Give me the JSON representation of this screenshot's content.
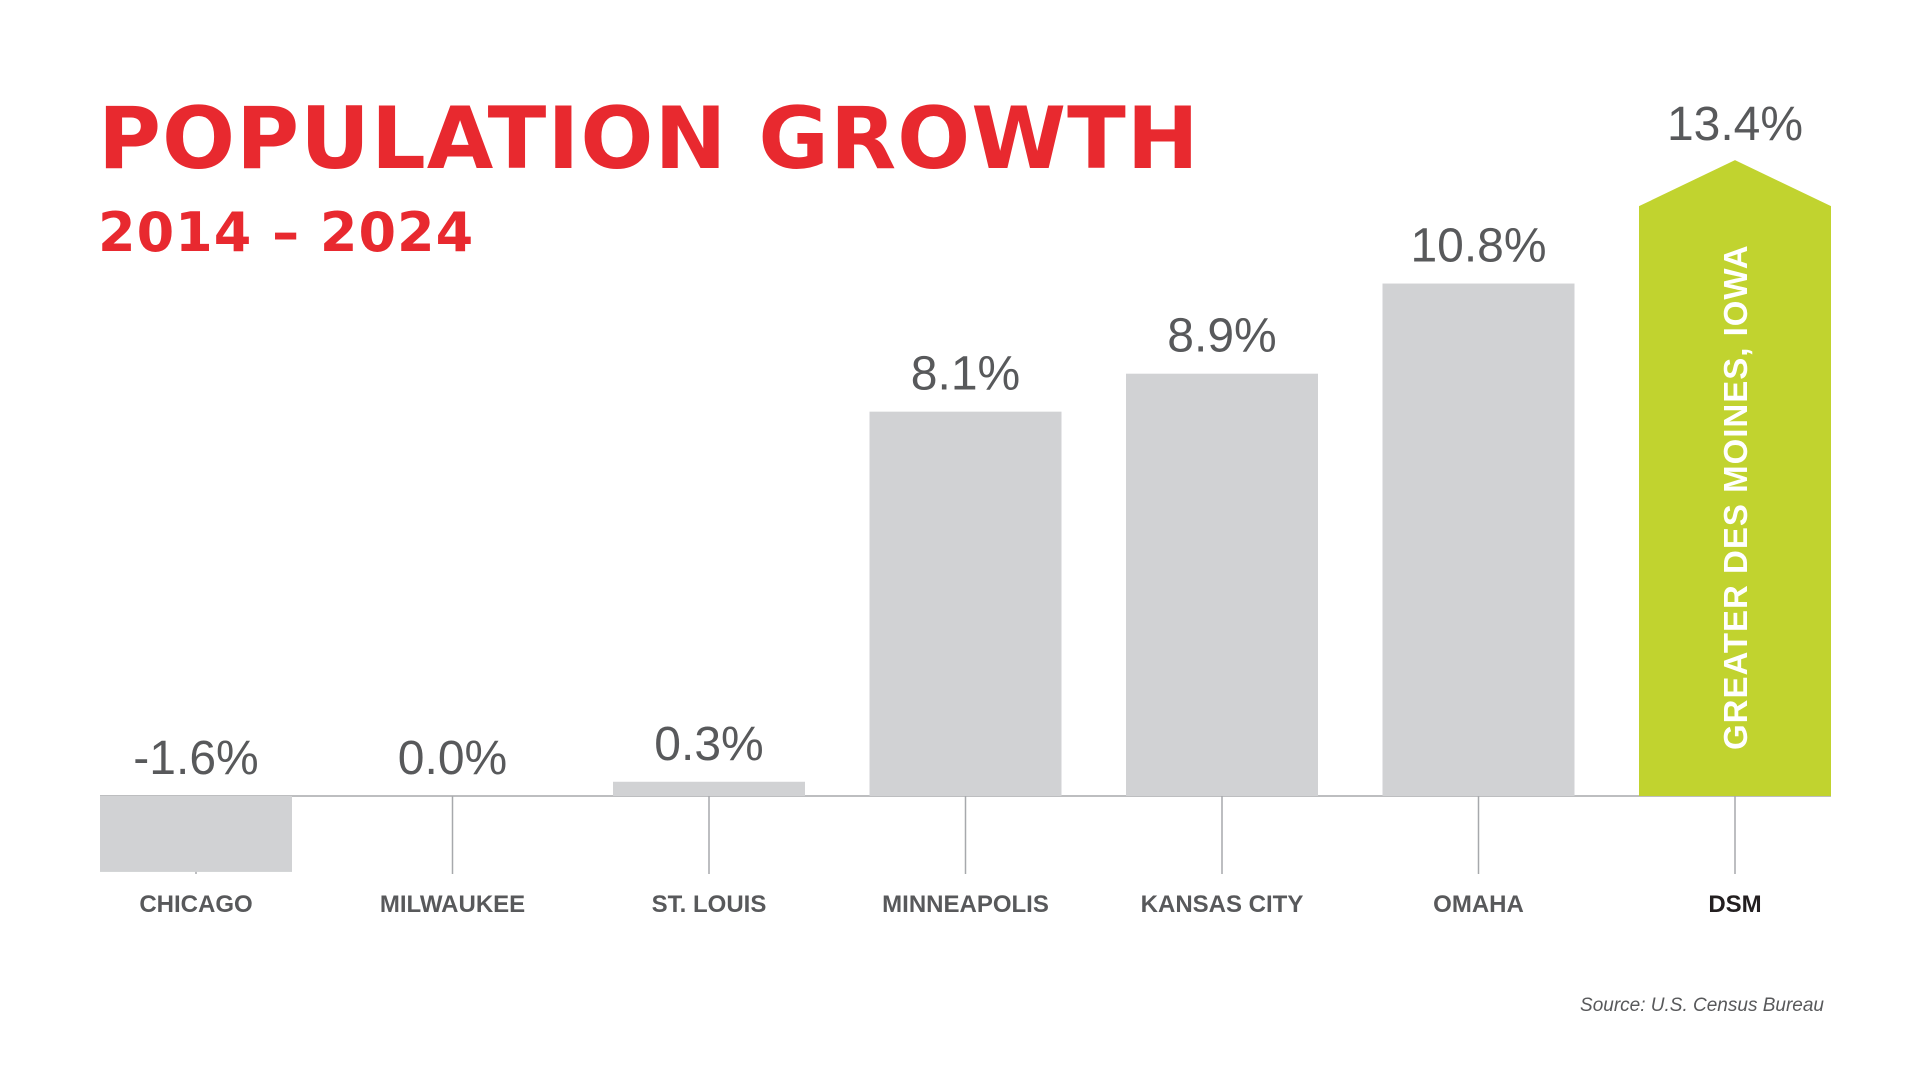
{
  "header": {
    "title": "POPULATION GROWTH",
    "subtitle": "2014 – 2024"
  },
  "footer": {
    "source": "Source: U.S. Census Bureau"
  },
  "colors": {
    "title": "#e8292f",
    "bar": "#d1d2d4",
    "highlight": "#c1d32f",
    "text": "#58595b",
    "highlight_text": "#231f20",
    "axis": "#a7a9ac"
  },
  "chart_data": {
    "type": "bar",
    "categories": [
      "CHICAGO",
      "MILWAUKEE",
      "ST. LOUIS",
      "MINNEAPOLIS",
      "KANSAS CITY",
      "OMAHA",
      "DSM"
    ],
    "values": [
      -1.6,
      0.0,
      0.3,
      8.1,
      8.9,
      10.8,
      13.4
    ],
    "value_labels": [
      "-1.6%",
      "0.0%",
      "0.3%",
      "8.1%",
      "8.9%",
      "10.8%",
      "13.4%"
    ],
    "highlight_index": 6,
    "highlight_label": "GREATER DES MOINES, IOWA",
    "title": "POPULATION GROWTH",
    "subtitle": "2014 – 2024",
    "xlabel": "",
    "ylabel": "",
    "grid": false,
    "legend": "none"
  }
}
